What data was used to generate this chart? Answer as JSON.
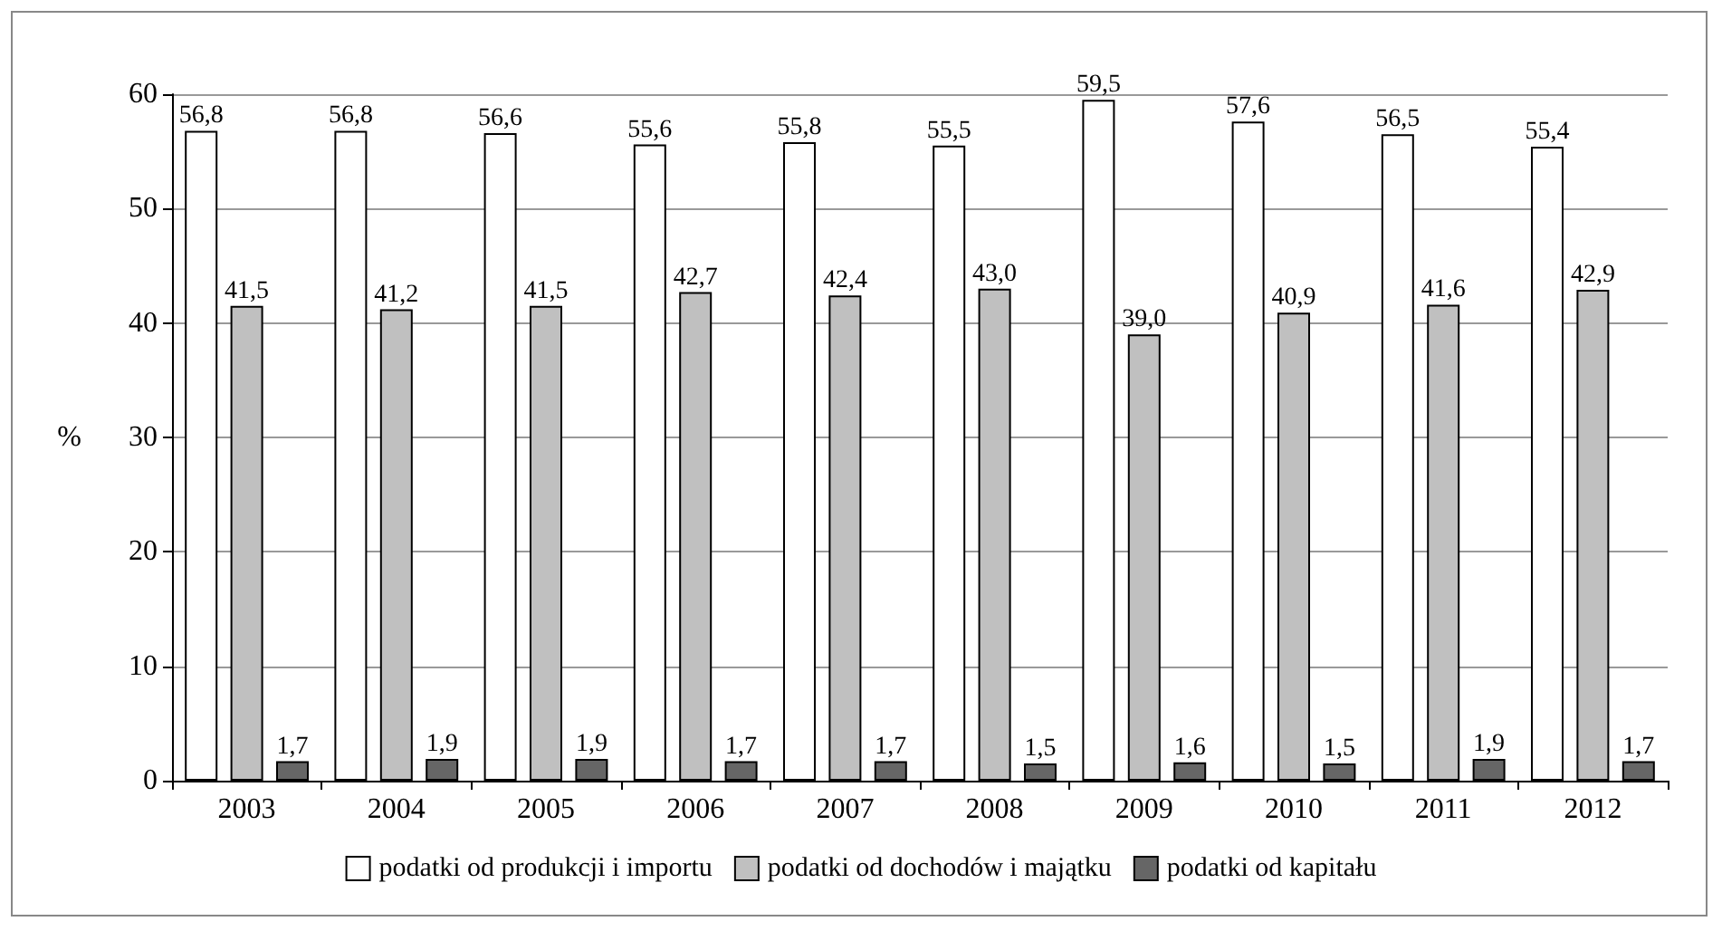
{
  "chart_data": {
    "type": "bar",
    "ylabel": "%",
    "categories": [
      "2003",
      "2004",
      "2005",
      "2006",
      "2007",
      "2008",
      "2009",
      "2010",
      "2011",
      "2012"
    ],
    "series": [
      {
        "name": "podatki od produkcji i importu",
        "color": "#ffffff",
        "values": [
          56.8,
          56.8,
          56.6,
          55.6,
          55.8,
          55.5,
          59.5,
          57.6,
          56.5,
          55.4
        ],
        "value_labels": [
          "56,8",
          "56,8",
          "56,6",
          "55,6",
          "55,8",
          "55,5",
          "59,5",
          "57,6",
          "56,5",
          "55,4"
        ]
      },
      {
        "name": "podatki od dochodów i majątku",
        "color": "#c0c0c0",
        "values": [
          41.5,
          41.2,
          41.5,
          42.7,
          42.4,
          43.0,
          39.0,
          40.9,
          41.6,
          42.9
        ],
        "value_labels": [
          "41,5",
          "41,2",
          "41,5",
          "42,7",
          "42,4",
          "43,0",
          "39,0",
          "40,9",
          "41,6",
          "42,9"
        ]
      },
      {
        "name": "podatki od kapitału",
        "color": "#666666",
        "values": [
          1.7,
          1.9,
          1.9,
          1.7,
          1.7,
          1.5,
          1.6,
          1.5,
          1.9,
          1.7
        ],
        "value_labels": [
          "1,7",
          "1,9",
          "1,9",
          "1,7",
          "1,7",
          "1,5",
          "1,6",
          "1,5",
          "1,9",
          "1,7"
        ]
      }
    ],
    "ylim": [
      0,
      60
    ],
    "yticks": [
      0,
      10,
      20,
      30,
      40,
      50,
      60
    ],
    "grid": "y",
    "legend": "bottom"
  }
}
